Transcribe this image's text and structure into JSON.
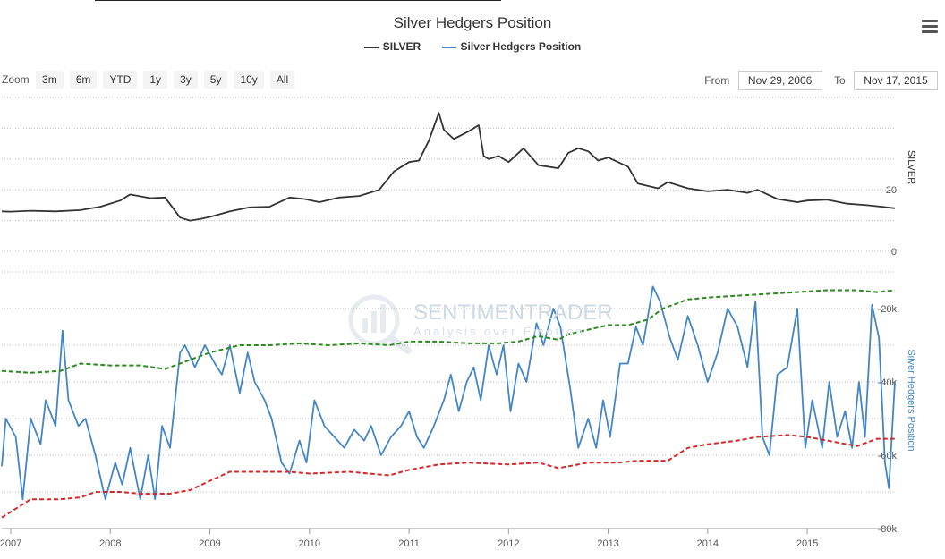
{
  "title": "Silver Hedgers Position",
  "legend": [
    {
      "label": "SILVER",
      "color": "#333333"
    },
    {
      "label": "Silver Hedgers Position",
      "color": "#4286c6"
    }
  ],
  "menu_icon": "hamburger-menu-icon",
  "zoom": {
    "label": "Zoom",
    "buttons": [
      "3m",
      "6m",
      "YTD",
      "1y",
      "3y",
      "5y",
      "10y",
      "All"
    ]
  },
  "range": {
    "from_label": "From",
    "from_value": "Nov 29, 2006",
    "to_label": "To",
    "to_value": "Nov 17, 2015"
  },
  "watermark": {
    "name": "SENTIMENTRADER",
    "tagline": "Analysis over Emotion"
  },
  "chart_data": {
    "type": "line",
    "title": "Silver Hedgers Position",
    "x_range": [
      2006.91,
      2015.88
    ],
    "x_ticks": [
      2007,
      2008,
      2009,
      2010,
      2011,
      2012,
      2013,
      2014,
      2015
    ],
    "panels": [
      {
        "name": "silver-price",
        "ylabel": "SILVER",
        "ylim": [
          0,
          50
        ],
        "y_ticks": [
          0,
          20
        ],
        "series": [
          {
            "name": "SILVER",
            "color": "#333333",
            "style": "solid",
            "x": [
              2006.91,
              2007.0,
              2007.2,
              2007.45,
              2007.7,
              2007.9,
              2008.1,
              2008.2,
              2008.4,
              2008.55,
              2008.7,
              2008.8,
              2008.9,
              2009.0,
              2009.2,
              2009.4,
              2009.6,
              2009.8,
              2009.95,
              2010.1,
              2010.3,
              2010.5,
              2010.7,
              2010.85,
              2011.0,
              2011.1,
              2011.2,
              2011.3,
              2011.35,
              2011.45,
              2011.6,
              2011.7,
              2011.75,
              2011.8,
              2011.9,
              2012.0,
              2012.15,
              2012.3,
              2012.5,
              2012.6,
              2012.7,
              2012.8,
              2012.9,
              2013.0,
              2013.2,
              2013.3,
              2013.5,
              2013.6,
              2013.8,
              2014.0,
              2014.2,
              2014.4,
              2014.5,
              2014.7,
              2014.9,
              2015.0,
              2015.2,
              2015.4,
              2015.6,
              2015.75,
              2015.88
            ],
            "values": [
              13.0,
              12.9,
              13.2,
              13.0,
              13.4,
              14.5,
              16.5,
              18.5,
              17.3,
              17.5,
              11.0,
              10.0,
              10.5,
              11.2,
              13.0,
              14.3,
              14.5,
              17.5,
              17.0,
              16.0,
              17.5,
              18.0,
              20.0,
              26.0,
              29.0,
              29.5,
              36.0,
              45.0,
              39.5,
              36.5,
              39.0,
              41.0,
              31.0,
              30.0,
              31.0,
              29.0,
              33.5,
              28.0,
              27.0,
              32.0,
              33.5,
              32.5,
              29.5,
              30.5,
              27.5,
              22.0,
              20.5,
              22.5,
              20.5,
              19.5,
              20.0,
              19.0,
              20.0,
              17.0,
              16.0,
              16.5,
              16.8,
              15.5,
              15.0,
              14.5,
              14.0
            ]
          }
        ]
      },
      {
        "name": "hedgers-position",
        "ylabel": "Silver Hedgers Position",
        "ylim": [
          -80000,
          -10000
        ],
        "y_ticks": [
          -20000,
          -40000,
          -60000,
          -80000
        ],
        "y_tick_labels": [
          "-20k",
          "-40k",
          "-60k",
          "-80k"
        ],
        "series": [
          {
            "name": "Silver Hedgers Position",
            "color": "#4286c6",
            "style": "solid",
            "x": [
              2006.91,
              2006.95,
              2007.05,
              2007.12,
              2007.2,
              2007.3,
              2007.35,
              2007.45,
              2007.52,
              2007.58,
              2007.68,
              2007.75,
              2007.85,
              2007.95,
              2008.05,
              2008.12,
              2008.2,
              2008.3,
              2008.38,
              2008.45,
              2008.52,
              2008.6,
              2008.7,
              2008.75,
              2008.85,
              2008.95,
              2009.05,
              2009.12,
              2009.2,
              2009.3,
              2009.38,
              2009.45,
              2009.55,
              2009.62,
              2009.72,
              2009.8,
              2009.9,
              2009.97,
              2010.05,
              2010.15,
              2010.25,
              2010.35,
              2010.45,
              2010.55,
              2010.62,
              2010.72,
              2010.82,
              2010.92,
              2011.0,
              2011.08,
              2011.15,
              2011.25,
              2011.35,
              2011.42,
              2011.5,
              2011.58,
              2011.65,
              2011.72,
              2011.8,
              2011.88,
              2011.95,
              2012.02,
              2012.1,
              2012.18,
              2012.28,
              2012.35,
              2012.45,
              2012.52,
              2012.62,
              2012.7,
              2012.8,
              2012.88,
              2012.95,
              2013.02,
              2013.12,
              2013.2,
              2013.28,
              2013.35,
              2013.45,
              2013.52,
              2013.62,
              2013.7,
              2013.8,
              2013.9,
              2014.0,
              2014.1,
              2014.2,
              2014.3,
              2014.4,
              2014.48,
              2014.55,
              2014.62,
              2014.7,
              2014.8,
              2014.9,
              2014.98,
              2015.05,
              2015.15,
              2015.22,
              2015.3,
              2015.38,
              2015.45,
              2015.52,
              2015.58,
              2015.65,
              2015.72,
              2015.78,
              2015.82,
              2015.88
            ],
            "values": [
              -63000,
              -50000,
              -55000,
              -72000,
              -50000,
              -57000,
              -45000,
              -52000,
              -26000,
              -45000,
              -52000,
              -50000,
              -60000,
              -72000,
              -62000,
              -68000,
              -58000,
              -72000,
              -60000,
              -72000,
              -52000,
              -58000,
              -32000,
              -30000,
              -36000,
              -30000,
              -35000,
              -38000,
              -30000,
              -43000,
              -32000,
              -40000,
              -45000,
              -50000,
              -62000,
              -65000,
              -56000,
              -62000,
              -45000,
              -52000,
              -55000,
              -58000,
              -53000,
              -56000,
              -52000,
              -60000,
              -55000,
              -52000,
              -48000,
              -55000,
              -58000,
              -52000,
              -45000,
              -38000,
              -48000,
              -40000,
              -36000,
              -45000,
              -30000,
              -38000,
              -30000,
              -48000,
              -35000,
              -40000,
              -24000,
              -30000,
              -20000,
              -25000,
              -42000,
              -58000,
              -50000,
              -58000,
              -45000,
              -55000,
              -35000,
              -35000,
              -25000,
              -30000,
              -14000,
              -18000,
              -28000,
              -34000,
              -22000,
              -30000,
              -40000,
              -32000,
              -20000,
              -25000,
              -36000,
              -18000,
              -55000,
              -60000,
              -38000,
              -36000,
              -20000,
              -58000,
              -45000,
              -58000,
              -40000,
              -55000,
              -48000,
              -58000,
              -40000,
              -55000,
              -19000,
              -28000,
              -62000,
              -69000,
              -40000
            ]
          },
          {
            "name": "upper-band",
            "color": "#2b8a1e",
            "style": "dashed",
            "x": [
              2006.91,
              2007.2,
              2007.5,
              2007.7,
              2008.0,
              2008.3,
              2008.55,
              2008.8,
              2009.0,
              2009.3,
              2009.6,
              2009.9,
              2010.2,
              2010.5,
              2010.8,
              2011.0,
              2011.3,
              2011.6,
              2011.9,
              2012.1,
              2012.3,
              2012.5,
              2012.6,
              2013.0,
              2013.2,
              2013.4,
              2013.55,
              2013.8,
              2014.0,
              2014.3,
              2014.6,
              2014.9,
              2015.2,
              2015.5,
              2015.7,
              2015.88
            ],
            "values": [
              -37000,
              -37500,
              -37000,
              -35000,
              -35500,
              -35500,
              -36500,
              -34000,
              -32000,
              -30000,
              -30000,
              -29500,
              -30000,
              -29500,
              -30000,
              -29000,
              -29000,
              -29500,
              -29500,
              -29000,
              -27500,
              -28500,
              -27000,
              -24500,
              -24500,
              -23000,
              -20000,
              -17500,
              -17000,
              -16500,
              -16000,
              -15500,
              -15000,
              -15000,
              -15500,
              -15000
            ]
          },
          {
            "name": "lower-band",
            "color": "#d62828",
            "style": "dashed",
            "x": [
              2006.91,
              2007.2,
              2007.5,
              2007.7,
              2007.85,
              2008.1,
              2008.3,
              2008.6,
              2008.8,
              2009.0,
              2009.2,
              2009.5,
              2009.8,
              2010.0,
              2010.4,
              2010.8,
              2011.0,
              2011.3,
              2011.6,
              2012.0,
              2012.3,
              2012.5,
              2012.8,
              2013.1,
              2013.3,
              2013.6,
              2013.8,
              2014.0,
              2014.3,
              2014.5,
              2014.8,
              2015.0,
              2015.2,
              2015.5,
              2015.7,
              2015.88
            ],
            "values": [
              -77000,
              -72000,
              -72000,
              -71500,
              -70000,
              -70000,
              -70500,
              -70500,
              -69500,
              -67000,
              -64500,
              -64500,
              -64500,
              -65000,
              -64500,
              -65500,
              -64000,
              -62500,
              -62000,
              -62500,
              -62000,
              -63500,
              -62000,
              -62000,
              -61500,
              -61500,
              -58000,
              -57000,
              -56000,
              -55000,
              -54500,
              -55000,
              -56000,
              -57500,
              -55500,
              -55500
            ]
          }
        ]
      }
    ]
  }
}
